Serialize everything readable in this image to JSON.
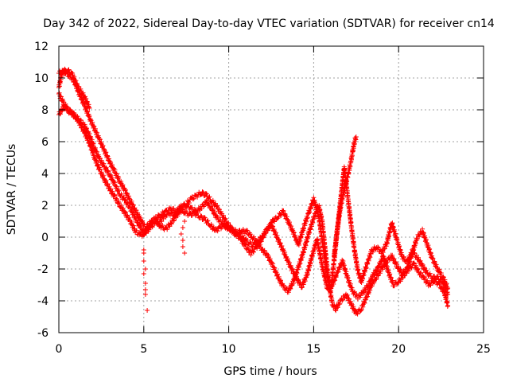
{
  "chart_data": {
    "type": "scatter",
    "title": "Day 342 of 2022, Sidereal Day-to-day VTEC variation (SDTVAR) for receiver cn14",
    "xlabel": "GPS time / hours",
    "ylabel": "SDTVAR / TECUs",
    "xlim": [
      0,
      25
    ],
    "ylim": [
      -6,
      12
    ],
    "x_ticks": [
      0,
      5,
      10,
      15,
      20,
      25
    ],
    "y_ticks": [
      -6,
      -4,
      -2,
      0,
      2,
      4,
      6,
      8,
      10,
      12
    ],
    "grid": true,
    "marker": "+",
    "series_color": "#ff0000",
    "series": [
      {
        "name": "trace-a",
        "points": [
          [
            0.0,
            10.3
          ],
          [
            0.3,
            10.4
          ],
          [
            0.6,
            10.2
          ],
          [
            0.9,
            9.8
          ],
          [
            1.2,
            9.0
          ],
          [
            1.5,
            8.3
          ],
          [
            1.8,
            7.5
          ],
          [
            2.1,
            6.8
          ],
          [
            2.4,
            6.1
          ],
          [
            2.7,
            5.4
          ],
          [
            3.0,
            4.7
          ],
          [
            3.3,
            4.1
          ],
          [
            3.6,
            3.5
          ],
          [
            3.9,
            2.9
          ],
          [
            4.2,
            2.3
          ],
          [
            4.5,
            1.7
          ],
          [
            4.8,
            1.1
          ],
          [
            5.1,
            0.6
          ],
          [
            5.4,
            0.9
          ],
          [
            5.7,
            1.2
          ],
          [
            6.0,
            1.4
          ],
          [
            6.3,
            1.6
          ],
          [
            6.6,
            1.8
          ],
          [
            6.9,
            1.6
          ],
          [
            7.2,
            1.9
          ],
          [
            7.5,
            2.1
          ],
          [
            7.8,
            2.4
          ],
          [
            8.1,
            2.6
          ],
          [
            8.4,
            2.8
          ],
          [
            8.7,
            2.6
          ],
          [
            9.0,
            2.3
          ],
          [
            9.3,
            1.9
          ],
          [
            9.6,
            1.4
          ],
          [
            9.9,
            0.9
          ],
          [
            10.2,
            0.5
          ],
          [
            10.5,
            0.3
          ],
          [
            10.8,
            0.4
          ],
          [
            11.1,
            0.3
          ],
          [
            11.4,
            0.0
          ],
          [
            11.7,
            -0.4
          ],
          [
            12.0,
            -0.8
          ],
          [
            12.3,
            -1.2
          ],
          [
            12.6,
            -1.8
          ],
          [
            12.9,
            -2.5
          ],
          [
            13.2,
            -3.1
          ],
          [
            13.5,
            -3.4
          ],
          [
            13.8,
            -2.8
          ],
          [
            14.1,
            -1.9
          ],
          [
            14.4,
            -0.9
          ],
          [
            14.7,
            0.2
          ],
          [
            15.0,
            1.2
          ],
          [
            15.3,
            2.0
          ],
          [
            15.5,
            1.0
          ],
          [
            15.7,
            -1.0
          ],
          [
            15.9,
            -3.0
          ],
          [
            16.1,
            -4.2
          ],
          [
            16.3,
            -4.5
          ],
          [
            16.6,
            -4.0
          ],
          [
            16.9,
            -3.6
          ],
          [
            17.2,
            -4.2
          ],
          [
            17.5,
            -4.8
          ],
          [
            17.8,
            -4.5
          ],
          [
            18.1,
            -3.8
          ],
          [
            18.4,
            -3.0
          ],
          [
            18.7,
            -2.5
          ],
          [
            19.0,
            -2.0
          ],
          [
            19.3,
            -1.5
          ],
          [
            19.6,
            -1.2
          ],
          [
            19.9,
            -1.8
          ],
          [
            20.2,
            -2.3
          ],
          [
            20.5,
            -2.0
          ],
          [
            20.8,
            -1.0
          ],
          [
            21.1,
            0.0
          ],
          [
            21.4,
            0.4
          ],
          [
            21.7,
            -0.5
          ],
          [
            22.0,
            -1.4
          ],
          [
            22.3,
            -2.0
          ],
          [
            22.6,
            -2.5
          ],
          [
            22.9,
            -3.2
          ]
        ]
      },
      {
        "name": "trace-b",
        "points": [
          [
            0.0,
            7.7
          ],
          [
            0.3,
            8.2
          ],
          [
            0.6,
            8.0
          ],
          [
            0.9,
            7.6
          ],
          [
            1.2,
            7.4
          ],
          [
            1.5,
            7.0
          ],
          [
            1.8,
            6.4
          ],
          [
            2.1,
            5.6
          ],
          [
            2.4,
            4.9
          ],
          [
            2.7,
            4.4
          ],
          [
            3.0,
            3.9
          ],
          [
            3.3,
            3.3
          ],
          [
            3.6,
            2.7
          ],
          [
            3.9,
            2.3
          ],
          [
            4.2,
            1.8
          ],
          [
            4.5,
            1.2
          ],
          [
            4.8,
            0.6
          ],
          [
            5.0,
            0.2
          ],
          [
            5.3,
            0.7
          ],
          [
            5.6,
            1.1
          ],
          [
            5.9,
            0.9
          ],
          [
            6.2,
            1.3
          ],
          [
            6.5,
            1.5
          ],
          [
            6.8,
            1.4
          ],
          [
            7.1,
            1.7
          ],
          [
            7.4,
            1.6
          ],
          [
            7.7,
            1.4
          ],
          [
            8.0,
            1.5
          ],
          [
            8.3,
            1.3
          ],
          [
            8.6,
            1.1
          ],
          [
            8.9,
            0.8
          ],
          [
            9.2,
            0.4
          ],
          [
            9.5,
            0.6
          ],
          [
            9.8,
            0.8
          ],
          [
            10.1,
            0.5
          ],
          [
            10.4,
            0.2
          ],
          [
            10.7,
            -0.1
          ],
          [
            11.0,
            -0.6
          ],
          [
            11.3,
            -1.0
          ],
          [
            11.6,
            -0.7
          ],
          [
            11.9,
            -0.2
          ],
          [
            12.2,
            0.4
          ],
          [
            12.5,
            0.8
          ],
          [
            12.8,
            0.1
          ],
          [
            13.1,
            -0.6
          ],
          [
            13.4,
            -1.3
          ],
          [
            13.7,
            -2.0
          ],
          [
            14.0,
            -2.6
          ],
          [
            14.3,
            -3.1
          ],
          [
            14.6,
            -2.4
          ],
          [
            14.9,
            -1.2
          ],
          [
            15.2,
            -0.1
          ],
          [
            15.5,
            -1.8
          ],
          [
            15.8,
            -3.2
          ],
          [
            16.1,
            -3.0
          ],
          [
            16.4,
            -2.2
          ],
          [
            16.7,
            -1.5
          ],
          [
            17.0,
            -2.6
          ],
          [
            17.3,
            -3.4
          ],
          [
            17.6,
            -3.8
          ],
          [
            17.9,
            -3.5
          ],
          [
            18.2,
            -3.0
          ],
          [
            18.5,
            -2.4
          ],
          [
            18.8,
            -1.9
          ],
          [
            19.1,
            -1.2
          ],
          [
            19.4,
            -2.2
          ],
          [
            19.7,
            -3.0
          ],
          [
            20.0,
            -2.8
          ],
          [
            20.3,
            -2.4
          ],
          [
            20.6,
            -2.0
          ],
          [
            20.9,
            -1.7
          ],
          [
            21.2,
            -2.2
          ],
          [
            21.5,
            -2.6
          ],
          [
            21.8,
            -3.0
          ],
          [
            22.1,
            -2.7
          ],
          [
            22.4,
            -3.0
          ],
          [
            22.7,
            -3.5
          ],
          [
            22.9,
            -4.3
          ]
        ]
      },
      {
        "name": "trace-c",
        "points": [
          [
            0.0,
            9.0
          ],
          [
            0.3,
            8.4
          ],
          [
            0.6,
            7.9
          ],
          [
            0.9,
            7.7
          ],
          [
            1.2,
            7.2
          ],
          [
            1.5,
            6.6
          ],
          [
            1.8,
            5.9
          ],
          [
            2.1,
            5.0
          ],
          [
            2.4,
            4.2
          ],
          [
            2.7,
            3.6
          ],
          [
            3.0,
            3.0
          ],
          [
            3.3,
            2.5
          ],
          [
            3.6,
            2.0
          ],
          [
            3.9,
            1.5
          ],
          [
            4.2,
            1.0
          ],
          [
            4.5,
            0.4
          ],
          [
            4.8,
            0.1
          ],
          [
            5.1,
            0.3
          ],
          [
            5.4,
            0.6
          ],
          [
            5.7,
            1.0
          ],
          [
            6.0,
            0.7
          ],
          [
            6.3,
            0.5
          ],
          [
            6.6,
            0.9
          ],
          [
            6.9,
            1.3
          ],
          [
            7.2,
            1.8
          ],
          [
            7.5,
            2.0
          ],
          [
            7.8,
            1.8
          ],
          [
            8.1,
            1.6
          ],
          [
            8.4,
            1.9
          ],
          [
            8.7,
            2.2
          ],
          [
            9.0,
            1.8
          ],
          [
            9.3,
            1.2
          ],
          [
            9.6,
            0.9
          ],
          [
            9.9,
            0.6
          ],
          [
            10.2,
            0.4
          ],
          [
            10.5,
            0.2
          ],
          [
            10.8,
            0.0
          ],
          [
            11.1,
            -0.3
          ],
          [
            11.4,
            -0.5
          ],
          [
            11.7,
            -0.3
          ],
          [
            12.0,
            0.1
          ],
          [
            12.3,
            0.5
          ],
          [
            12.6,
            1.0
          ],
          [
            12.9,
            1.3
          ],
          [
            13.2,
            1.6
          ],
          [
            13.5,
            1.0
          ],
          [
            13.8,
            0.3
          ],
          [
            14.1,
            -0.5
          ],
          [
            14.4,
            0.6
          ],
          [
            14.7,
            1.5
          ],
          [
            15.0,
            2.4
          ],
          [
            15.3,
            1.3
          ],
          [
            15.6,
            -0.9
          ],
          [
            15.8,
            -2.4
          ],
          [
            16.0,
            -3.3
          ],
          [
            16.2,
            -1.5
          ],
          [
            16.4,
            0.5
          ],
          [
            16.6,
            2.5
          ],
          [
            16.8,
            4.4
          ],
          [
            17.0,
            2.6
          ],
          [
            17.2,
            0.8
          ],
          [
            17.4,
            -0.8
          ],
          [
            17.6,
            -2.1
          ],
          [
            17.8,
            -2.8
          ],
          [
            18.1,
            -1.8
          ],
          [
            18.4,
            -0.9
          ],
          [
            18.7,
            -0.6
          ],
          [
            19.0,
            -1.0
          ],
          [
            19.3,
            -0.4
          ],
          [
            19.6,
            0.9
          ],
          [
            19.9,
            -0.2
          ],
          [
            20.2,
            -1.2
          ],
          [
            20.5,
            -1.6
          ],
          [
            20.8,
            -0.9
          ],
          [
            21.1,
            -1.3
          ],
          [
            21.4,
            -1.8
          ],
          [
            21.7,
            -2.3
          ],
          [
            22.0,
            -2.5
          ],
          [
            22.3,
            -2.6
          ],
          [
            22.6,
            -2.8
          ],
          [
            22.9,
            -3.6
          ]
        ]
      },
      {
        "name": "trace-d",
        "points": [
          [
            16.2,
            -1.2
          ],
          [
            16.4,
            0.6
          ],
          [
            16.6,
            2.0
          ],
          [
            16.8,
            3.0
          ],
          [
            17.0,
            3.8
          ],
          [
            17.2,
            4.8
          ],
          [
            17.3,
            5.4
          ],
          [
            17.4,
            6.0
          ],
          [
            17.5,
            6.3
          ]
        ]
      },
      {
        "name": "trace-e",
        "points": [
          [
            0.0,
            9.4
          ],
          [
            0.2,
            10.4
          ],
          [
            0.5,
            10.5
          ],
          [
            0.8,
            10.2
          ],
          [
            1.1,
            9.5
          ],
          [
            1.4,
            9.0
          ],
          [
            1.6,
            8.6
          ],
          [
            1.8,
            8.1
          ]
        ]
      },
      {
        "name": "spike-near-5h",
        "points": [
          [
            5.0,
            -0.8
          ],
          [
            5.0,
            -1.5
          ],
          [
            5.0,
            -2.3
          ],
          [
            5.1,
            -2.9
          ],
          [
            5.1,
            -3.3
          ],
          [
            5.1,
            -3.6
          ],
          [
            5.2,
            -4.6
          ],
          [
            5.0,
            -1.0
          ],
          [
            5.1,
            -2.0
          ]
        ]
      },
      {
        "name": "spike-near-7h",
        "points": [
          [
            7.3,
            -0.2
          ],
          [
            7.3,
            -0.6
          ],
          [
            7.4,
            -1.0
          ],
          [
            7.2,
            0.2
          ],
          [
            7.3,
            0.6
          ],
          [
            7.4,
            1.0
          ]
        ]
      }
    ]
  }
}
